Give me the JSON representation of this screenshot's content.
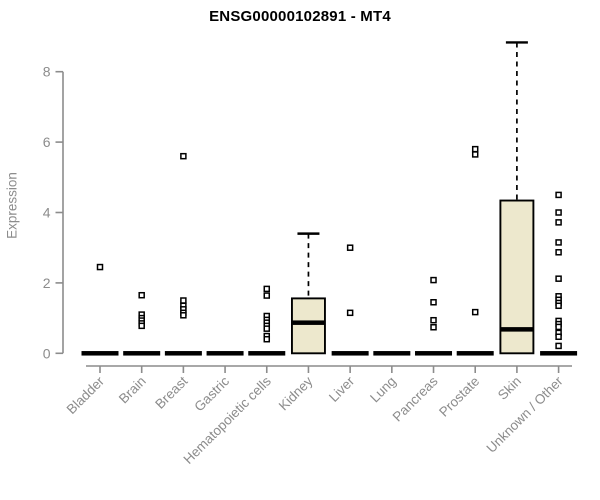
{
  "chart_data": {
    "type": "boxplot",
    "title": "ENSG00000102891 - MT4",
    "ylabel": "Expression",
    "xlabel": "",
    "ylim": [
      0,
      8.9
    ],
    "yticks": [
      0,
      2,
      4,
      6,
      8
    ],
    "grid": false,
    "legend": null,
    "categories": [
      "Bladder",
      "Brain",
      "Breast",
      "Gastric",
      "Hematopoietic cells",
      "Kidney",
      "Liver",
      "Lung",
      "Pancreas",
      "Prostate",
      "Skin",
      "Unknown / Other"
    ],
    "series": [
      {
        "category": "Bladder",
        "q1": 0,
        "median": 0,
        "q3": 0,
        "whisker_low": 0,
        "whisker_high": 0,
        "outliers": [
          2.45
        ]
      },
      {
        "category": "Brain",
        "q1": 0,
        "median": 0,
        "q3": 0,
        "whisker_low": 0,
        "whisker_high": 0,
        "outliers": [
          1.65,
          1.1,
          1.0,
          0.93,
          0.85,
          0.78
        ]
      },
      {
        "category": "Breast",
        "q1": 0,
        "median": 0,
        "q3": 0,
        "whisker_low": 0,
        "whisker_high": 0,
        "outliers": [
          5.6,
          1.5,
          1.35,
          1.25,
          1.15,
          1.08
        ]
      },
      {
        "category": "Gastric",
        "q1": 0,
        "median": 0,
        "q3": 0,
        "whisker_low": 0,
        "whisker_high": 0,
        "outliers": []
      },
      {
        "category": "Hematopoietic cells",
        "q1": 0,
        "median": 0,
        "q3": 0,
        "whisker_low": 0,
        "whisker_high": 0,
        "outliers": [
          1.83,
          1.64,
          1.06,
          0.95,
          0.87,
          0.78,
          0.7,
          0.49,
          0.4
        ]
      },
      {
        "category": "Kidney",
        "q1": 0,
        "median": 0.87,
        "q3": 1.56,
        "whisker_low": 0,
        "whisker_high": 3.4,
        "outliers": []
      },
      {
        "category": "Liver",
        "q1": 0,
        "median": 0,
        "q3": 0,
        "whisker_low": 0,
        "whisker_high": 0,
        "outliers": [
          3.0,
          1.15
        ]
      },
      {
        "category": "Lung",
        "q1": 0,
        "median": 0,
        "q3": 0,
        "whisker_low": 0,
        "whisker_high": 0,
        "outliers": []
      },
      {
        "category": "Pancreas",
        "q1": 0,
        "median": 0,
        "q3": 0,
        "whisker_low": 0,
        "whisker_high": 0,
        "outliers": [
          2.08,
          1.45,
          0.94,
          0.74
        ]
      },
      {
        "category": "Prostate",
        "q1": 0,
        "median": 0,
        "q3": 0,
        "whisker_low": 0,
        "whisker_high": 0,
        "outliers": [
          5.8,
          5.65,
          1.17
        ]
      },
      {
        "category": "Skin",
        "q1": 0,
        "median": 0.68,
        "q3": 4.34,
        "whisker_low": 0,
        "whisker_high": 8.83,
        "outliers": []
      },
      {
        "category": "Unknown / Other",
        "q1": 0,
        "median": 0,
        "q3": 0,
        "whisker_low": 0,
        "whisker_high": 0,
        "outliers": [
          4.5,
          4.0,
          3.72,
          3.15,
          2.87,
          2.12,
          1.62,
          1.52,
          1.43,
          1.35,
          0.92,
          0.83,
          0.75,
          0.58,
          0.47,
          0.21
        ]
      }
    ],
    "colors": {
      "box_fill": "#EDE8CD",
      "box_stroke": "#000000",
      "median": "#000000",
      "whisker": "#000000",
      "outlier_stroke": "#000000",
      "outlier_fill": "#FFFFFF",
      "axis": "#8C8C8C",
      "title": "#000000"
    }
  }
}
